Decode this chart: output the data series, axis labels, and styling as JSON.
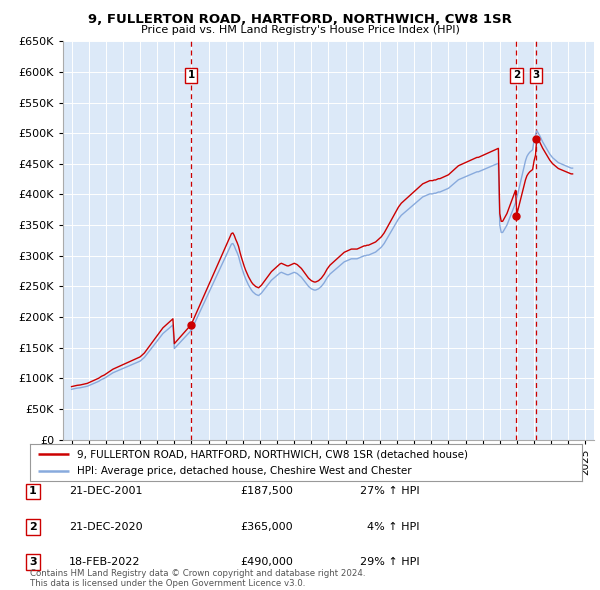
{
  "title": "9, FULLERTON ROAD, HARTFORD, NORTHWICH, CW8 1SR",
  "subtitle": "Price paid vs. HM Land Registry's House Price Index (HPI)",
  "bg_color": "#dce9f8",
  "legend_line1": "9, FULLERTON ROAD, HARTFORD, NORTHWICH, CW8 1SR (detached house)",
  "legend_line2": "HPI: Average price, detached house, Cheshire West and Chester",
  "footer": "Contains HM Land Registry data © Crown copyright and database right 2024.\nThis data is licensed under the Open Government Licence v3.0.",
  "sale_color": "#cc0000",
  "hpi_color": "#88aadd",
  "vline_color": "#cc0000",
  "ylim": [
    0,
    650000
  ],
  "yticks": [
    0,
    50000,
    100000,
    150000,
    200000,
    250000,
    300000,
    350000,
    400000,
    450000,
    500000,
    550000,
    600000,
    650000
  ],
  "sales": [
    {
      "date": 2001.97,
      "price": 187500,
      "label": "1"
    },
    {
      "date": 2020.97,
      "price": 365000,
      "label": "2"
    },
    {
      "date": 2022.12,
      "price": 490000,
      "label": "3"
    }
  ],
  "sale_table": [
    {
      "num": "1",
      "date": "21-DEC-2001",
      "price": "£187,500",
      "note": "27% ↑ HPI"
    },
    {
      "num": "2",
      "date": "21-DEC-2020",
      "price": "£365,000",
      "note": "  4% ↑ HPI"
    },
    {
      "num": "3",
      "date": "18-FEB-2022",
      "price": "£490,000",
      "note": "29% ↑ HPI"
    }
  ],
  "hpi_years": [
    1995.0,
    1995.083,
    1995.167,
    1995.25,
    1995.333,
    1995.417,
    1995.5,
    1995.583,
    1995.667,
    1995.75,
    1995.833,
    1995.917,
    1996.0,
    1996.083,
    1996.167,
    1996.25,
    1996.333,
    1996.417,
    1996.5,
    1996.583,
    1996.667,
    1996.75,
    1996.833,
    1996.917,
    1997.0,
    1997.083,
    1997.167,
    1997.25,
    1997.333,
    1997.417,
    1997.5,
    1997.583,
    1997.667,
    1997.75,
    1997.833,
    1997.917,
    1998.0,
    1998.083,
    1998.167,
    1998.25,
    1998.333,
    1998.417,
    1998.5,
    1998.583,
    1998.667,
    1998.75,
    1998.833,
    1998.917,
    1999.0,
    1999.083,
    1999.167,
    1999.25,
    1999.333,
    1999.417,
    1999.5,
    1999.583,
    1999.667,
    1999.75,
    1999.833,
    1999.917,
    2000.0,
    2000.083,
    2000.167,
    2000.25,
    2000.333,
    2000.417,
    2000.5,
    2000.583,
    2000.667,
    2000.75,
    2000.833,
    2000.917,
    2001.0,
    2001.083,
    2001.167,
    2001.25,
    2001.333,
    2001.417,
    2001.5,
    2001.583,
    2001.667,
    2001.75,
    2001.833,
    2001.917,
    2002.0,
    2002.083,
    2002.167,
    2002.25,
    2002.333,
    2002.417,
    2002.5,
    2002.583,
    2002.667,
    2002.75,
    2002.833,
    2002.917,
    2003.0,
    2003.083,
    2003.167,
    2003.25,
    2003.333,
    2003.417,
    2003.5,
    2003.583,
    2003.667,
    2003.75,
    2003.833,
    2003.917,
    2004.0,
    2004.083,
    2004.167,
    2004.25,
    2004.333,
    2004.417,
    2004.5,
    2004.583,
    2004.667,
    2004.75,
    2004.833,
    2004.917,
    2005.0,
    2005.083,
    2005.167,
    2005.25,
    2005.333,
    2005.417,
    2005.5,
    2005.583,
    2005.667,
    2005.75,
    2005.833,
    2005.917,
    2006.0,
    2006.083,
    2006.167,
    2006.25,
    2006.333,
    2006.417,
    2006.5,
    2006.583,
    2006.667,
    2006.75,
    2006.833,
    2006.917,
    2007.0,
    2007.083,
    2007.167,
    2007.25,
    2007.333,
    2007.417,
    2007.5,
    2007.583,
    2007.667,
    2007.75,
    2007.833,
    2007.917,
    2008.0,
    2008.083,
    2008.167,
    2008.25,
    2008.333,
    2008.417,
    2008.5,
    2008.583,
    2008.667,
    2008.75,
    2008.833,
    2008.917,
    2009.0,
    2009.083,
    2009.167,
    2009.25,
    2009.333,
    2009.417,
    2009.5,
    2009.583,
    2009.667,
    2009.75,
    2009.833,
    2009.917,
    2010.0,
    2010.083,
    2010.167,
    2010.25,
    2010.333,
    2010.417,
    2010.5,
    2010.583,
    2010.667,
    2010.75,
    2010.833,
    2010.917,
    2011.0,
    2011.083,
    2011.167,
    2011.25,
    2011.333,
    2011.417,
    2011.5,
    2011.583,
    2011.667,
    2011.75,
    2011.833,
    2011.917,
    2012.0,
    2012.083,
    2012.167,
    2012.25,
    2012.333,
    2012.417,
    2012.5,
    2012.583,
    2012.667,
    2012.75,
    2012.833,
    2012.917,
    2013.0,
    2013.083,
    2013.167,
    2013.25,
    2013.333,
    2013.417,
    2013.5,
    2013.583,
    2013.667,
    2013.75,
    2013.833,
    2013.917,
    2014.0,
    2014.083,
    2014.167,
    2014.25,
    2014.333,
    2014.417,
    2014.5,
    2014.583,
    2014.667,
    2014.75,
    2014.833,
    2014.917,
    2015.0,
    2015.083,
    2015.167,
    2015.25,
    2015.333,
    2015.417,
    2015.5,
    2015.583,
    2015.667,
    2015.75,
    2015.833,
    2015.917,
    2016.0,
    2016.083,
    2016.167,
    2016.25,
    2016.333,
    2016.417,
    2016.5,
    2016.583,
    2016.667,
    2016.75,
    2016.833,
    2016.917,
    2017.0,
    2017.083,
    2017.167,
    2017.25,
    2017.333,
    2017.417,
    2017.5,
    2017.583,
    2017.667,
    2017.75,
    2017.833,
    2017.917,
    2018.0,
    2018.083,
    2018.167,
    2018.25,
    2018.333,
    2018.417,
    2018.5,
    2018.583,
    2018.667,
    2018.75,
    2018.833,
    2018.917,
    2019.0,
    2019.083,
    2019.167,
    2019.25,
    2019.333,
    2019.417,
    2019.5,
    2019.583,
    2019.667,
    2019.75,
    2019.833,
    2019.917,
    2020.0,
    2020.083,
    2020.167,
    2020.25,
    2020.333,
    2020.417,
    2020.5,
    2020.583,
    2020.667,
    2020.75,
    2020.833,
    2020.917,
    2021.0,
    2021.083,
    2021.167,
    2021.25,
    2021.333,
    2021.417,
    2021.5,
    2021.583,
    2021.667,
    2021.75,
    2021.833,
    2021.917,
    2022.0,
    2022.083,
    2022.167,
    2022.25,
    2022.333,
    2022.417,
    2022.5,
    2022.583,
    2022.667,
    2022.75,
    2022.833,
    2022.917,
    2023.0,
    2023.083,
    2023.167,
    2023.25,
    2023.333,
    2023.417,
    2023.5,
    2023.583,
    2023.667,
    2023.75,
    2023.833,
    2023.917,
    2024.0,
    2024.083,
    2024.167,
    2024.25
  ],
  "hpi_values": [
    82000,
    82500,
    83000,
    83500,
    84000,
    84200,
    84500,
    85000,
    85500,
    86000,
    86500,
    87000,
    88000,
    89000,
    90000,
    91000,
    92000,
    93000,
    94000,
    95000,
    96500,
    98000,
    99000,
    100000,
    101500,
    103000,
    104500,
    106000,
    107500,
    109000,
    110000,
    111000,
    112000,
    113000,
    114000,
    115000,
    116000,
    117000,
    118000,
    119000,
    120000,
    121000,
    122000,
    123000,
    124000,
    125000,
    126000,
    127000,
    128000,
    130000,
    132000,
    134000,
    137000,
    140000,
    143000,
    146000,
    149000,
    152000,
    155000,
    158000,
    161000,
    164000,
    167000,
    170000,
    173000,
    175000,
    177000,
    179000,
    181000,
    183000,
    185000,
    187000,
    148500,
    151000,
    153500,
    156000,
    158500,
    161000,
    163500,
    166000,
    168500,
    171000,
    173500,
    176000,
    179000,
    184000,
    189000,
    194000,
    199000,
    204000,
    209000,
    214000,
    219000,
    224000,
    229000,
    234000,
    239000,
    244000,
    249000,
    254000,
    259000,
    264000,
    269000,
    274000,
    279000,
    284000,
    289000,
    294000,
    299000,
    304000,
    309000,
    314000,
    319000,
    320000,
    316000,
    310000,
    305000,
    299000,
    290000,
    282000,
    275000,
    268000,
    262000,
    257000,
    252000,
    248000,
    244000,
    241000,
    239000,
    237000,
    236000,
    235000,
    237000,
    239000,
    242000,
    245000,
    248000,
    251000,
    254000,
    257000,
    260000,
    262000,
    264000,
    266000,
    268000,
    270000,
    272000,
    273000,
    272000,
    271000,
    270000,
    269000,
    269000,
    270000,
    271000,
    272000,
    273000,
    272000,
    271000,
    269000,
    267000,
    265000,
    262000,
    259000,
    256000,
    253000,
    250000,
    248000,
    246000,
    245000,
    244000,
    244000,
    245000,
    246000,
    248000,
    250000,
    253000,
    256000,
    260000,
    264000,
    267000,
    270000,
    272000,
    274000,
    276000,
    278000,
    280000,
    282000,
    284000,
    286000,
    288000,
    290000,
    291000,
    292000,
    293000,
    294000,
    295000,
    295000,
    295000,
    295000,
    295000,
    296000,
    297000,
    298000,
    299000,
    300000,
    300000,
    301000,
    301000,
    302000,
    303000,
    304000,
    305000,
    306000,
    308000,
    310000,
    312000,
    314000,
    317000,
    320000,
    324000,
    328000,
    332000,
    336000,
    340000,
    344000,
    348000,
    352000,
    356000,
    360000,
    363000,
    366000,
    368000,
    370000,
    372000,
    374000,
    376000,
    378000,
    380000,
    382000,
    384000,
    386000,
    388000,
    390000,
    392000,
    394000,
    396000,
    397000,
    398000,
    399000,
    400000,
    401000,
    401000,
    401000,
    402000,
    402000,
    403000,
    404000,
    404000,
    405000,
    406000,
    407000,
    408000,
    409000,
    410000,
    412000,
    414000,
    416000,
    418000,
    420000,
    422000,
    424000,
    425000,
    426000,
    427000,
    428000,
    429000,
    430000,
    431000,
    432000,
    433000,
    434000,
    435000,
    436000,
    437000,
    437000,
    438000,
    439000,
    440000,
    441000,
    442000,
    443000,
    444000,
    445000,
    446000,
    447000,
    448000,
    449000,
    450000,
    451000,
    350000,
    338000,
    338000,
    342000,
    346000,
    350000,
    356000,
    362000,
    368000,
    374000,
    380000,
    386000,
    395000,
    405000,
    415000,
    425000,
    435000,
    445000,
    455000,
    462000,
    466000,
    469000,
    471000,
    473000,
    488000,
    498000,
    504000,
    500000,
    496000,
    491000,
    486000,
    482000,
    478000,
    474000,
    470000,
    466000,
    463000,
    460000,
    458000,
    456000,
    454000,
    452000,
    451000,
    450000,
    449000,
    448000,
    447000,
    446000,
    445000,
    444000,
    443000,
    443000
  ],
  "xlim": [
    1994.5,
    2025.5
  ],
  "xtick_start": 1995,
  "xtick_end": 2025
}
